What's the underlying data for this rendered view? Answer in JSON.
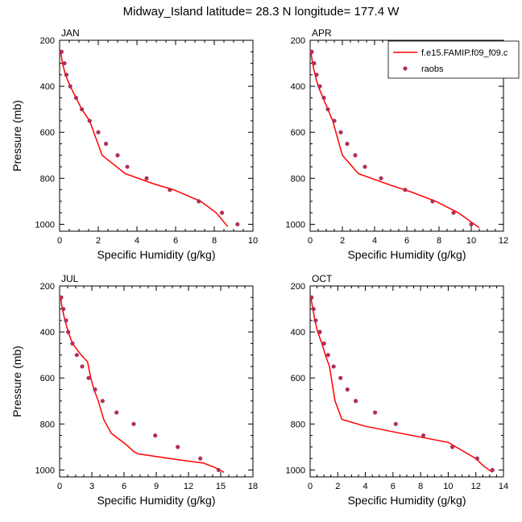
{
  "title": "Midway_Island  latitude= 28.3 N longitude= 177.4 W",
  "legend": {
    "model_label": "f.e15.FAMIP.f09_f09.c",
    "obs_label": "raobs",
    "model_color": "#ff0000",
    "obs_color": "#b0305a"
  },
  "chart_data": [
    {
      "type": "line",
      "panel_label": "JAN",
      "xlabel": "Specific Humidity (g/kg)",
      "ylabel": "Pressure (mb)",
      "xlim": [
        0,
        10
      ],
      "xticks": [
        0,
        2,
        4,
        6,
        8,
        10
      ],
      "ylim": [
        1030,
        200
      ],
      "yticks": [
        200,
        400,
        600,
        800,
        1000
      ],
      "legend_position": "top-right",
      "series": [
        {
          "kind": "model",
          "x": [
            0.05,
            0.15,
            0.3,
            0.55,
            0.85,
            1.15,
            1.55,
            2.2,
            3.4,
            4.9,
            5.9,
            7.3,
            8.1,
            8.7
          ],
          "y": [
            250,
            300,
            350,
            400,
            450,
            500,
            550,
            700,
            780,
            825,
            850,
            900,
            950,
            1010
          ]
        },
        {
          "kind": "obs",
          "x": [
            0.1,
            0.25,
            0.35,
            0.55,
            0.85,
            1.15,
            1.55,
            2.0,
            2.4,
            3.0,
            3.5,
            4.5,
            5.7,
            7.2,
            8.4,
            9.2
          ],
          "y": [
            250,
            300,
            350,
            400,
            450,
            500,
            550,
            600,
            650,
            700,
            750,
            800,
            850,
            900,
            950,
            1000
          ]
        }
      ]
    },
    {
      "type": "line",
      "panel_label": "APR",
      "xlabel": "Specific Humidity (g/kg)",
      "ylabel": "",
      "xlim": [
        0,
        12
      ],
      "xticks": [
        0,
        2,
        4,
        6,
        8,
        10,
        12
      ],
      "ylim": [
        1030,
        200
      ],
      "yticks": [
        200,
        400,
        600,
        800,
        1000
      ],
      "legend_position": "top-right",
      "series": [
        {
          "kind": "model",
          "x": [
            0.05,
            0.15,
            0.3,
            0.5,
            0.8,
            1.1,
            1.4,
            2.0,
            3.0,
            5.0,
            6.3,
            7.8,
            9.2,
            10.5
          ],
          "y": [
            250,
            300,
            350,
            400,
            450,
            500,
            550,
            700,
            780,
            830,
            860,
            900,
            950,
            1015
          ]
        },
        {
          "kind": "obs",
          "x": [
            0.1,
            0.25,
            0.4,
            0.6,
            0.85,
            1.1,
            1.5,
            1.9,
            2.3,
            2.8,
            3.4,
            4.4,
            5.9,
            7.6,
            8.9,
            10.0
          ],
          "y": [
            250,
            300,
            350,
            400,
            450,
            500,
            550,
            600,
            650,
            700,
            750,
            800,
            850,
            900,
            950,
            1000
          ]
        }
      ]
    },
    {
      "type": "line",
      "panel_label": "JUL",
      "xlabel": "Specific Humidity (g/kg)",
      "ylabel": "Pressure (mb)",
      "xlim": [
        0,
        18
      ],
      "xticks": [
        0,
        3,
        6,
        9,
        12,
        15,
        18
      ],
      "ylim": [
        1030,
        200
      ],
      "yticks": [
        200,
        400,
        600,
        800,
        1000
      ],
      "legend_position": "top-right",
      "series": [
        {
          "kind": "model",
          "x": [
            0.1,
            0.25,
            0.5,
            0.8,
            1.2,
            2.0,
            2.6,
            2.9,
            3.2,
            3.6,
            4.1,
            4.8,
            6.2,
            6.9,
            7.3,
            11.0,
            13.4,
            14.5,
            15.3
          ],
          "y": [
            250,
            300,
            350,
            400,
            450,
            500,
            530,
            600,
            650,
            700,
            780,
            840,
            890,
            920,
            930,
            955,
            970,
            990,
            1010
          ]
        },
        {
          "kind": "obs",
          "x": [
            0.15,
            0.35,
            0.6,
            0.8,
            1.2,
            1.6,
            2.1,
            2.7,
            3.3,
            4.0,
            5.3,
            6.9,
            8.9,
            11.0,
            13.1,
            14.8
          ],
          "y": [
            250,
            300,
            350,
            400,
            450,
            500,
            550,
            600,
            650,
            700,
            750,
            800,
            850,
            900,
            950,
            1000
          ]
        }
      ]
    },
    {
      "type": "line",
      "panel_label": "OCT",
      "xlabel": "Specific Humidity (g/kg)",
      "ylabel": "",
      "xlim": [
        0,
        14
      ],
      "xticks": [
        0,
        2,
        4,
        6,
        8,
        10,
        12,
        14
      ],
      "ylim": [
        1030,
        200
      ],
      "yticks": [
        200,
        400,
        600,
        800,
        1000
      ],
      "legend_position": "top-right",
      "series": [
        {
          "kind": "model",
          "x": [
            0.05,
            0.2,
            0.35,
            0.55,
            0.85,
            1.1,
            1.4,
            1.8,
            2.3,
            4.0,
            6.5,
            10.0,
            12.0,
            12.5,
            13.2
          ],
          "y": [
            250,
            300,
            350,
            400,
            450,
            500,
            550,
            700,
            780,
            810,
            840,
            880,
            950,
            980,
            1010
          ]
        },
        {
          "kind": "obs",
          "x": [
            0.1,
            0.25,
            0.4,
            0.7,
            1.0,
            1.3,
            1.7,
            2.2,
            2.7,
            3.3,
            4.7,
            6.2,
            8.2,
            10.3,
            12.1,
            13.2
          ],
          "y": [
            250,
            300,
            350,
            400,
            450,
            500,
            550,
            600,
            650,
            700,
            750,
            800,
            850,
            900,
            950,
            1000
          ]
        }
      ]
    }
  ]
}
